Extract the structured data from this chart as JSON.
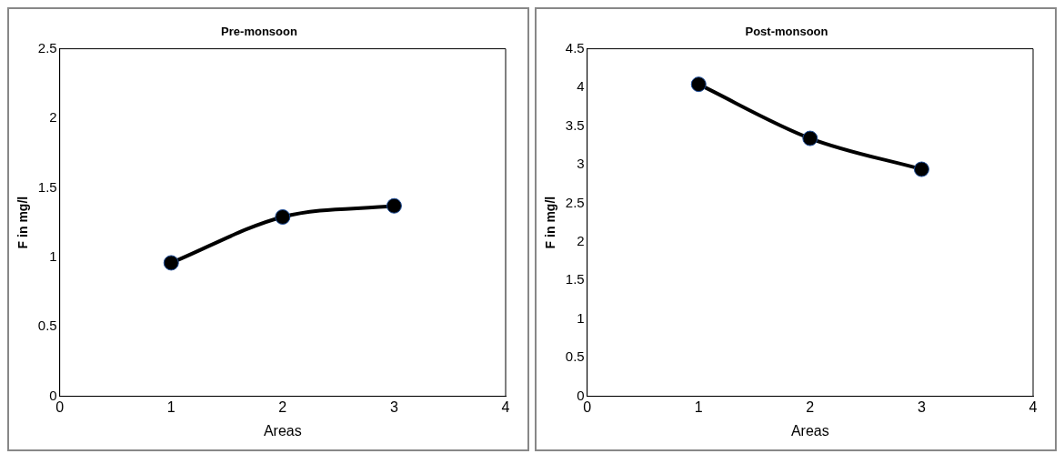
{
  "chart_data": [
    {
      "type": "line",
      "title": "Pre-monsoon",
      "xlabel": "Areas",
      "ylabel": "F in mg/l",
      "x": [
        1,
        2,
        3
      ],
      "series": [
        {
          "color": "#000000",
          "values": [
            0.96,
            1.29,
            1.37
          ]
        }
      ],
      "xlim": [
        0,
        4
      ],
      "xticks": [
        0,
        1,
        2,
        3,
        4
      ],
      "ylim": [
        0,
        2.5
      ],
      "yticks": [
        0,
        0.5,
        1,
        1.5,
        2,
        2.5
      ],
      "grid": false,
      "legend": false,
      "marker": "circle",
      "line_style": "solid"
    },
    {
      "type": "line",
      "title": "Post-monsoon",
      "xlabel": "Areas",
      "ylabel": "F in mg/l",
      "x": [
        1,
        2,
        3
      ],
      "series": [
        {
          "color": "#000000",
          "values": [
            4.04,
            3.34,
            2.94
          ]
        }
      ],
      "xlim": [
        0,
        4
      ],
      "xticks": [
        0,
        1,
        2,
        3,
        4
      ],
      "ylim": [
        0,
        4.5
      ],
      "yticks": [
        0,
        0.5,
        1,
        1.5,
        2,
        2.5,
        3,
        3.5,
        4,
        4.5
      ],
      "grid": false,
      "legend": false,
      "marker": "circle",
      "line_style": "solid"
    }
  ]
}
